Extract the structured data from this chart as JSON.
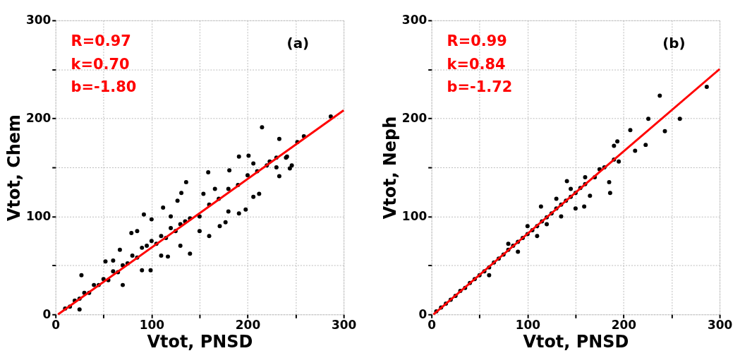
{
  "chart_data": [
    {
      "type": "scatter",
      "xlabel": "Vtot, PNSD",
      "ylabel": "Vtot, Chem",
      "annotations": [
        "R=0.97",
        "k=0.70",
        "b=-1.80",
        "(a)"
      ],
      "xlim": [
        0,
        300
      ],
      "ylim": [
        0,
        300
      ],
      "xticks": [
        0,
        {
          "value": 50,
          "label": null
        },
        100,
        {
          "value": 150,
          "label": null
        },
        200,
        {
          "value": 250,
          "label": null
        },
        300
      ],
      "yticks": [
        0,
        {
          "value": 50,
          "label": null
        },
        100,
        {
          "value": 150,
          "label": null
        },
        200,
        {
          "value": 250,
          "label": null
        },
        300
      ],
      "grid": true,
      "legend": false,
      "series": [
        {
          "type": "scatter",
          "marker": "circle",
          "color": "#000000",
          "x": [
            286.6,
            215,
            258.6,
            251.8,
            201,
            191,
            233,
            244,
            233,
            212,
            198,
            191,
            177,
            171,
            159,
            136,
            131,
            127,
            140,
            117,
            99,
            79,
            67,
            52,
            27,
            25,
            92,
            112,
            154,
            166,
            181,
            206,
            223,
            241,
            246,
            206,
            10,
            15,
            20,
            25,
            30,
            35,
            40,
            45,
            50,
            55,
            60,
            65,
            70,
            75,
            80,
            85,
            90,
            95,
            100,
            105,
            110,
            115,
            120,
            125,
            130,
            135,
            140,
            150,
            160,
            170,
            180,
            190,
            200,
            210,
            220,
            230,
            240,
            60,
            70,
            85,
            90,
            100,
            110,
            120,
            130,
            150,
            160,
            180,
            230
          ],
          "values": [
            201.9,
            191,
            181.8,
            175.8,
            162,
            161,
            179,
            149,
            141,
            123,
            107,
            103,
            94,
            90,
            145,
            135,
            124,
            116,
            62,
            59,
            45,
            83,
            66,
            54,
            40,
            5,
            102,
            109,
            123,
            128,
            147,
            154,
            156,
            161,
            152,
            120,
            6,
            8,
            14,
            16,
            22,
            22,
            30,
            30,
            36,
            35,
            44,
            43,
            50,
            52,
            60,
            58,
            68,
            70,
            75,
            72,
            80,
            78,
            88,
            85,
            92,
            95,
            98,
            100,
            112,
            118,
            128,
            132,
            142,
            146,
            152,
            160,
            160,
            55,
            30,
            85,
            45,
            97,
            60,
            100,
            70,
            85,
            80,
            105,
            150
          ]
        },
        {
          "type": "line",
          "color": "#ff0000",
          "x": [
            2.6,
            300
          ],
          "values": [
            0,
            208.2
          ]
        }
      ]
    },
    {
      "type": "scatter",
      "xlabel": "Vtot, PNSD",
      "ylabel": "Vtot, Neph",
      "annotations": [
        "R=0.99",
        "k=0.84",
        "b=-1.72",
        "(b)"
      ],
      "xlim": [
        0,
        300
      ],
      "ylim": [
        0,
        300
      ],
      "xticks": [
        0,
        {
          "value": 50,
          "label": null
        },
        100,
        {
          "value": 150,
          "label": null
        },
        200,
        {
          "value": 250,
          "label": null
        },
        300
      ],
      "yticks": [
        0,
        {
          "value": 50,
          "label": null
        },
        100,
        {
          "value": 150,
          "label": null
        },
        200,
        {
          "value": 250,
          "label": null
        },
        300
      ],
      "grid": true,
      "legend": false,
      "series": [
        {
          "type": "scatter",
          "marker": "circle",
          "color": "#000000",
          "x": [
            5,
            10,
            15,
            20,
            25,
            30,
            35,
            40,
            45,
            50,
            55,
            60,
            65,
            70,
            75,
            80,
            85,
            90,
            95,
            100,
            105,
            110,
            115,
            120,
            125,
            130,
            135,
            140,
            145,
            150,
            155,
            160,
            170,
            180,
            190,
            60,
            80,
            90,
            100,
            110,
            120,
            130,
            135,
            145,
            150,
            160,
            165,
            175,
            185,
            190,
            195,
            286.6,
            237.7,
            258.6,
            225.8,
            243,
            223,
            212,
            207,
            193.5,
            186,
            159,
            141,
            114
          ],
          "values": [
            3,
            7,
            11,
            15,
            19,
            24,
            27,
            32,
            36,
            40,
            44,
            48,
            53,
            57,
            61,
            66,
            70,
            74,
            78,
            82,
            86,
            90,
            95,
            99,
            103,
            108,
            112,
            116,
            120,
            124,
            129,
            133,
            140,
            150,
            158,
            40,
            72,
            64,
            90,
            80,
            92,
            118,
            100,
            128,
            108,
            140,
            121,
            148,
            135,
            172,
            156,
            232.2,
            223.2,
            199.5,
            199.5,
            187,
            173,
            167,
            188,
            176.5,
            124,
            110,
            136,
            110
          ]
        },
        {
          "type": "line",
          "color": "#ff0000",
          "x": [
            2,
            300
          ],
          "values": [
            0,
            250.3
          ]
        }
      ]
    }
  ]
}
